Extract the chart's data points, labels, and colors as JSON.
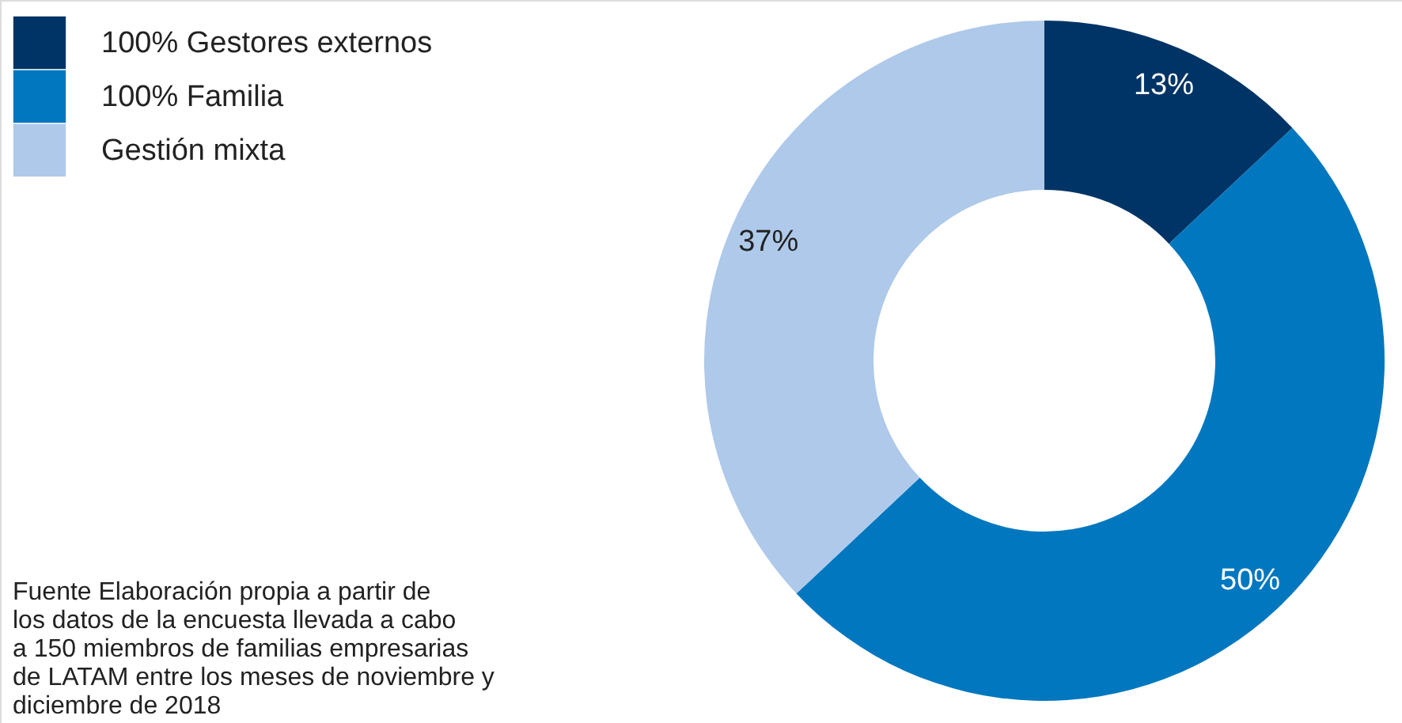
{
  "chart_data": {
    "type": "donut",
    "categories": [
      "100% Gestores externos",
      "100% Familia",
      "Gestión mixta"
    ],
    "values": [
      13,
      50,
      37
    ],
    "colors": [
      "#003466",
      "#0077bf",
      "#aec9e9"
    ],
    "value_labels": [
      "13%",
      "50%",
      "37%"
    ],
    "legend": "top left",
    "annotations": [
      "Fuente Elaboración propia a partir de los datos de la encuesta llevada a cabo a 150 miembros de familias empresarias de LATAM entre los meses de noviembre y diciembre de 2018"
    ]
  }
}
